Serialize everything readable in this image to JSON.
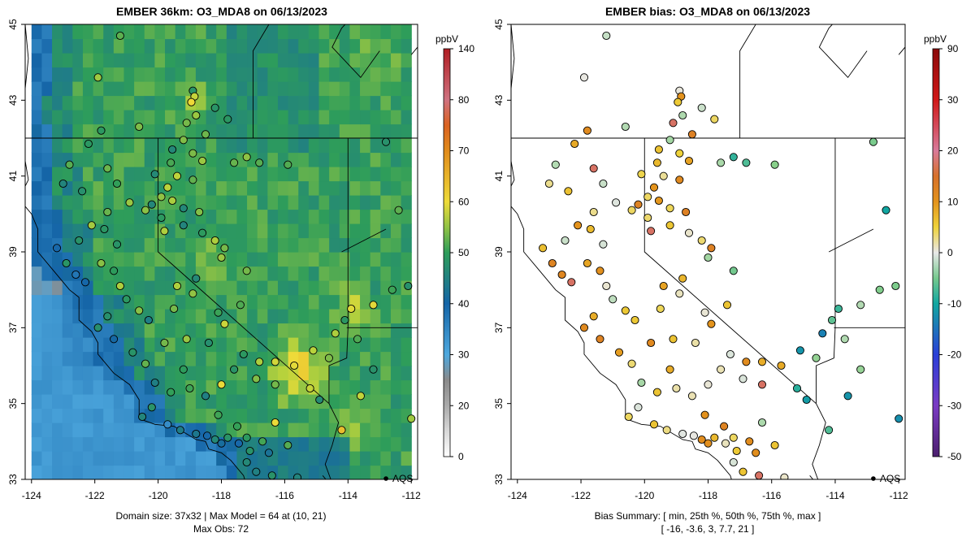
{
  "chart_data": [
    {
      "type": "heatmap",
      "title": "EMBER 36km: O3_MDA8 on 06/13/2023",
      "xlim": [
        -124.2,
        -111.8
      ],
      "ylim": [
        33,
        45
      ],
      "x_ticks": [
        "-124",
        "-122",
        "-120",
        "-118",
        "-116",
        "-114",
        "-112"
      ],
      "y_ticks": [
        "33",
        "35",
        "37",
        "39",
        "41",
        "43",
        "45"
      ],
      "grid": false,
      "legend": "right",
      "colorbar": {
        "unit": "ppbV",
        "ticks": [
          "0",
          "20",
          "30",
          "40",
          "50",
          "60",
          "70",
          "80",
          "140"
        ],
        "stops": [
          {
            "v": 0,
            "c": "#ffffff"
          },
          {
            "v": 17,
            "c": "#bdbdbd"
          },
          {
            "v": 25,
            "c": "#8a8a8a"
          },
          {
            "v": 30,
            "c": "#4ea8de"
          },
          {
            "v": 40,
            "c": "#1565a7"
          },
          {
            "v": 50,
            "c": "#2e9d5a"
          },
          {
            "v": 57,
            "c": "#b8d23c"
          },
          {
            "v": 60,
            "c": "#eedb39"
          },
          {
            "v": 70,
            "c": "#e18b1b"
          },
          {
            "v": 76,
            "c": "#d85a22"
          },
          {
            "v": 80,
            "c": "#cf7280"
          },
          {
            "v": 140,
            "c": "#b01d22"
          }
        ]
      },
      "domain_grid": {
        "cols": 37,
        "rows": 32,
        "lon_range": [
          -124,
          -112
        ],
        "lat_range": [
          33,
          45
        ]
      },
      "point_source": {
        "label": "AQS",
        "lon": -112.8,
        "lat": 33.0
      },
      "caption_lines": [
        "Domain size: 37x32 | Max Model = 64 at (10, 21)",
        "Max Obs: 72"
      ]
    },
    {
      "type": "scatter",
      "title": "EMBER bias: O3_MDA8 on 06/13/2023",
      "xlim": [
        -124.2,
        -111.8
      ],
      "ylim": [
        33,
        45
      ],
      "x_ticks": [
        "-124",
        "-122",
        "-120",
        "-118",
        "-116",
        "-114",
        "-112"
      ],
      "y_ticks": [
        "33",
        "35",
        "37",
        "39",
        "41",
        "43",
        "45"
      ],
      "grid": false,
      "legend": "right",
      "colorbar": {
        "unit": "ppbV",
        "ticks": [
          "-50",
          "-30",
          "-20",
          "-10",
          "0",
          "10",
          "20",
          "30",
          "90"
        ],
        "stops": [
          {
            "v": -50,
            "c": "#4b1f6e"
          },
          {
            "v": -30,
            "c": "#7a3bc4"
          },
          {
            "v": -20,
            "c": "#2a3fd8"
          },
          {
            "v": -10,
            "c": "#11a7a0"
          },
          {
            "v": -4,
            "c": "#8ad08a"
          },
          {
            "v": 0,
            "c": "#e8e8e8"
          },
          {
            "v": 5,
            "c": "#eed23a"
          },
          {
            "v": 10,
            "c": "#e3931c"
          },
          {
            "v": 16,
            "c": "#d56a2e"
          },
          {
            "v": 20,
            "c": "#d87a9a"
          },
          {
            "v": 30,
            "c": "#d01818"
          },
          {
            "v": 90,
            "c": "#8b0a0a"
          }
        ]
      },
      "bias_summary": {
        "labels": [
          "min",
          "25th %",
          "50th %",
          "75th %",
          "max"
        ],
        "values": [
          -16,
          -3.6,
          3,
          7.7,
          21
        ]
      },
      "point_source": {
        "label": "AQS",
        "lon": -112.8,
        "lat": 33.0
      },
      "caption_lines": [
        "Bias Summary: [ min, 25th %, 50th %, 75th %, max ]",
        "[ -16,   -3.6,   3,   7.7,   21 ]"
      ]
    }
  ]
}
